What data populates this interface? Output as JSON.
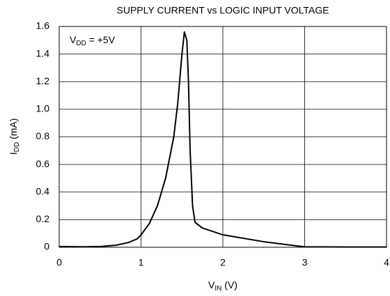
{
  "chart_data": {
    "type": "line",
    "title": "SUPPLY CURRENT vs LOGIC INPUT VOLTAGE",
    "xlabel": {
      "main": "V",
      "sub": "IN",
      "rest": " (V)"
    },
    "ylabel": {
      "main": "I",
      "sub": "DD",
      "rest": " (mA)"
    },
    "annotation": {
      "main": "V",
      "sub": "DD",
      "rest": " = +5V"
    },
    "xlim": [
      0,
      4
    ],
    "ylim": [
      0,
      1.6
    ],
    "xticks": [
      0,
      1,
      2,
      3,
      4
    ],
    "yticks": [
      0,
      0.2,
      0.4,
      0.6,
      0.8,
      {
        "value": 1,
        "label": "1.0"
      },
      1.2,
      1.4,
      1.6
    ],
    "grid": true,
    "series": [
      {
        "color": "#000000",
        "x": [
          0,
          0.3,
          0.5,
          0.7,
          0.85,
          0.95,
          1.0,
          1.1,
          1.2,
          1.3,
          1.4,
          1.45,
          1.5,
          1.53,
          1.56,
          1.58,
          1.6,
          1.63,
          1.66,
          1.75,
          2.0,
          2.5,
          2.9,
          3.0,
          3.5,
          4.0
        ],
        "values": [
          0.005,
          0.003,
          0.005,
          0.015,
          0.035,
          0.06,
          0.09,
          0.17,
          0.3,
          0.5,
          0.8,
          1.05,
          1.4,
          1.56,
          1.5,
          1.2,
          0.7,
          0.3,
          0.18,
          0.14,
          0.09,
          0.04,
          0.01,
          0.003,
          0.002,
          0.002
        ]
      }
    ]
  }
}
